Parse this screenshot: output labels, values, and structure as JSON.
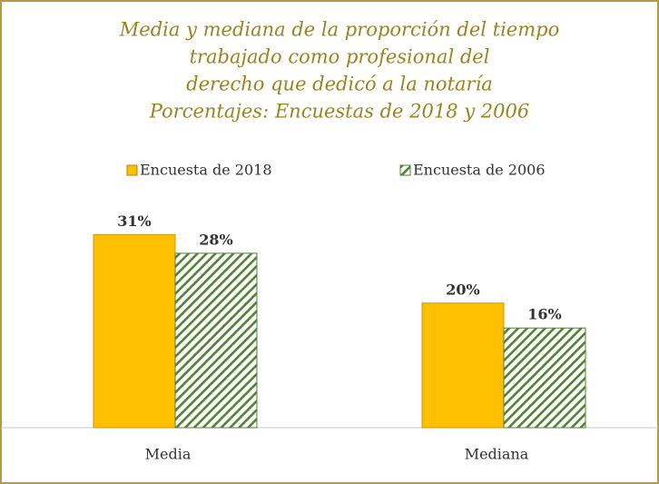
{
  "chart_data": {
    "type": "bar",
    "title": [
      "Media y mediana de la proporción del tiempo",
      "trabajado como profesional del",
      "derecho que dedicó a la notaría",
      "Porcentajes: Encuestas de 2018 y 2006"
    ],
    "categories": [
      "Media",
      "Mediana"
    ],
    "series": [
      {
        "name": "Encuesta de 2018",
        "color": "#ffc000",
        "values": [
          31,
          20
        ],
        "value_labels": [
          "31%",
          "20%"
        ]
      },
      {
        "name": "Encuesta de 2006",
        "color": "#548235",
        "values": [
          28,
          16
        ],
        "value_labels": [
          "28%",
          "16%"
        ]
      }
    ],
    "ylim": [
      0,
      36
    ]
  }
}
